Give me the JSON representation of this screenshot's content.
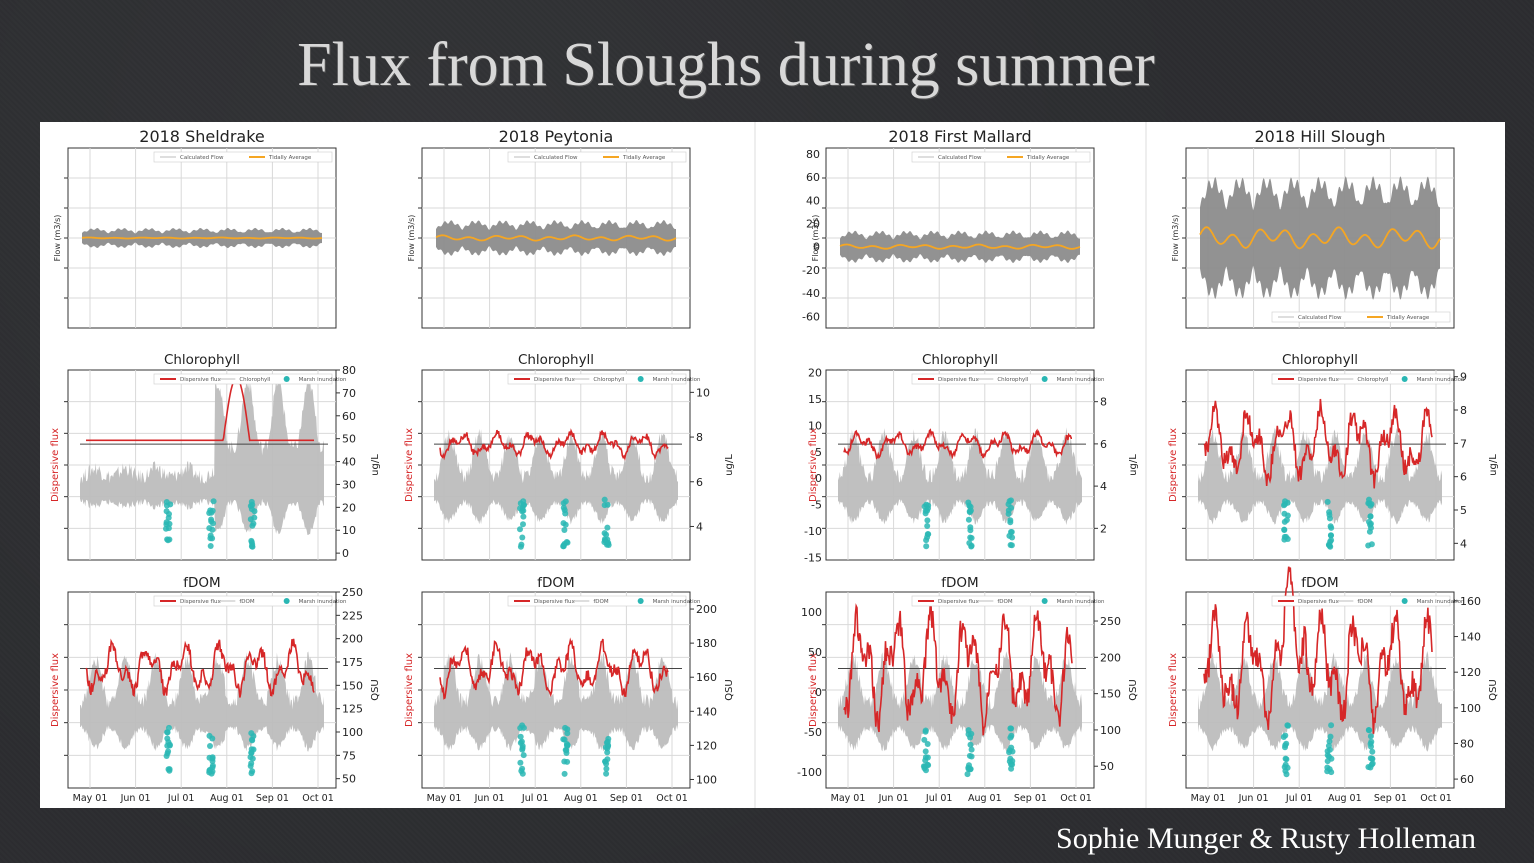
{
  "slide": {
    "title": "Flux from Sloughs during summer",
    "credit": "Sophie Munger & Rusty Holleman"
  },
  "colors": {
    "flow": "#8c8c8c",
    "tidal_avg": "#f5a623",
    "flux": "#d62728",
    "conc": "#bdbdbd",
    "marsh": "#2ab7b4",
    "grid": "#d9d9d9"
  },
  "chart_data": {
    "type": "line",
    "x_ticks": [
      "May 01",
      "Jun 01",
      "Jul 01",
      "Aug 01",
      "Sep 01",
      "Oct 01"
    ],
    "stations": [
      {
        "name": "2018 Sheldrake",
        "flow": {
          "title": "2018 Sheldrake",
          "ylabel": "Flow (m3/s)",
          "legend": [
            "Calculated Flow",
            "Tidally Average"
          ],
          "ylim": [
            -80,
            80
          ],
          "yticks": [],
          "legend_pos": "top-right",
          "amplitude": 9,
          "avg_amp": 0.3
        },
        "chl": {
          "title": "Chlorophyll",
          "ylabel": "Dispersive flux",
          "ylabel2": "ug/L",
          "legend": [
            "Dispersive flux",
            "Chlorophyll",
            "Marsh inundation"
          ],
          "y2lim": [
            -3,
            80
          ],
          "y2ticks": [
            0,
            10,
            20,
            30,
            40,
            50,
            60,
            70,
            80
          ]
        },
        "fdom": {
          "title": "fDOM",
          "ylabel": "Dispersive flux",
          "ylabel2": "QSU",
          "legend": [
            "Dispersive flux",
            "fDOM",
            "Marsh inundation"
          ],
          "y2lim": [
            40,
            250
          ],
          "y2ticks": [
            50,
            75,
            100,
            125,
            150,
            175,
            200,
            225,
            250
          ]
        }
      },
      {
        "name": "2018 Peytonia",
        "flow": {
          "title": "2018 Peytonia",
          "ylabel": "Flow (m3/s)",
          "legend": [
            "Calculated Flow",
            "Tidally Average"
          ],
          "ylim": [
            -80,
            80
          ],
          "yticks": [],
          "legend_pos": "top-right",
          "amplitude": 16,
          "avg_amp": 1.5
        },
        "chl": {
          "title": "Chlorophyll",
          "ylabel": "Dispersive flux",
          "ylabel2": "ug/L",
          "legend": [
            "Dispersive flux",
            "Chlorophyll",
            "Marsh inundation"
          ],
          "y2lim": [
            2.5,
            11
          ],
          "y2ticks": [
            4,
            6,
            8,
            10
          ]
        },
        "fdom": {
          "title": "fDOM",
          "ylabel": "Dispersive flux",
          "ylabel2": "QSU",
          "legend": [
            "Dispersive flux",
            "fDOM",
            "Marsh inundation"
          ],
          "y2lim": [
            95,
            210
          ],
          "y2ticks": [
            100,
            120,
            140,
            160,
            180,
            200
          ]
        }
      },
      {
        "name": "2018 First Mallard",
        "flow": {
          "title": "2018 First Mallard",
          "ylabel": "Flow (m3/s)",
          "legend": [
            "Calculated Flow",
            "Tidally Average"
          ],
          "ylim": [
            -70,
            85
          ],
          "yticks": [
            -60,
            -40,
            -20,
            0,
            20,
            40,
            60,
            80
          ],
          "legend_pos": "top-right",
          "amplitude": 14,
          "avg_amp": 1.2
        },
        "chl": {
          "title": "Chlorophyll",
          "ylabel": "Dispersive flux",
          "ylabel2": "ug/L",
          "legend": [
            "Dispersive flux",
            "Chlorophyll",
            "Marsh inundation"
          ],
          "ylim": [
            -15.5,
            20.5
          ],
          "yticks": [
            -15,
            -10,
            -5,
            0,
            5,
            10,
            15,
            20
          ],
          "y2lim": [
            0.5,
            9.5
          ],
          "y2ticks": [
            2,
            4,
            6,
            8
          ]
        },
        "fdom": {
          "title": "fDOM",
          "ylabel": "Dispersive flux",
          "ylabel2": "QSU",
          "legend": [
            "Dispersive flux",
            "fDOM",
            "Marsh inundation"
          ],
          "ylim": [
            -120,
            125
          ],
          "yticks": [
            -100,
            -50,
            0,
            50,
            100
          ],
          "y2lim": [
            20,
            290
          ],
          "y2ticks": [
            50,
            100,
            150,
            200,
            250
          ]
        }
      },
      {
        "name": "2018 Hill Slough",
        "flow": {
          "title": "2018 Hill Slough",
          "ylabel": "Flow (m3/s)",
          "legend": [
            "Calculated Flow",
            "Tidally Average"
          ],
          "ylim": [
            -80,
            80
          ],
          "yticks": [],
          "legend_pos": "bottom-right",
          "amplitude": 55,
          "avg_amp": 6
        },
        "chl": {
          "title": "Chlorophyll",
          "ylabel": "Dispersive flux",
          "ylabel2": "ug/L",
          "legend": [
            "Dispersive flux",
            "Chlorophyll",
            "Marsh inundation"
          ],
          "y2lim": [
            3.5,
            9.2
          ],
          "y2ticks": [
            4,
            5,
            6,
            7,
            8,
            9
          ]
        },
        "fdom": {
          "title": "fDOM",
          "ylabel": "Dispersive flux",
          "ylabel2": "QSU",
          "legend": [
            "Dispersive flux",
            "fDOM",
            "Marsh inundation"
          ],
          "y2lim": [
            55,
            165
          ],
          "y2ticks": [
            60,
            80,
            100,
            120,
            140,
            160
          ]
        }
      }
    ]
  }
}
